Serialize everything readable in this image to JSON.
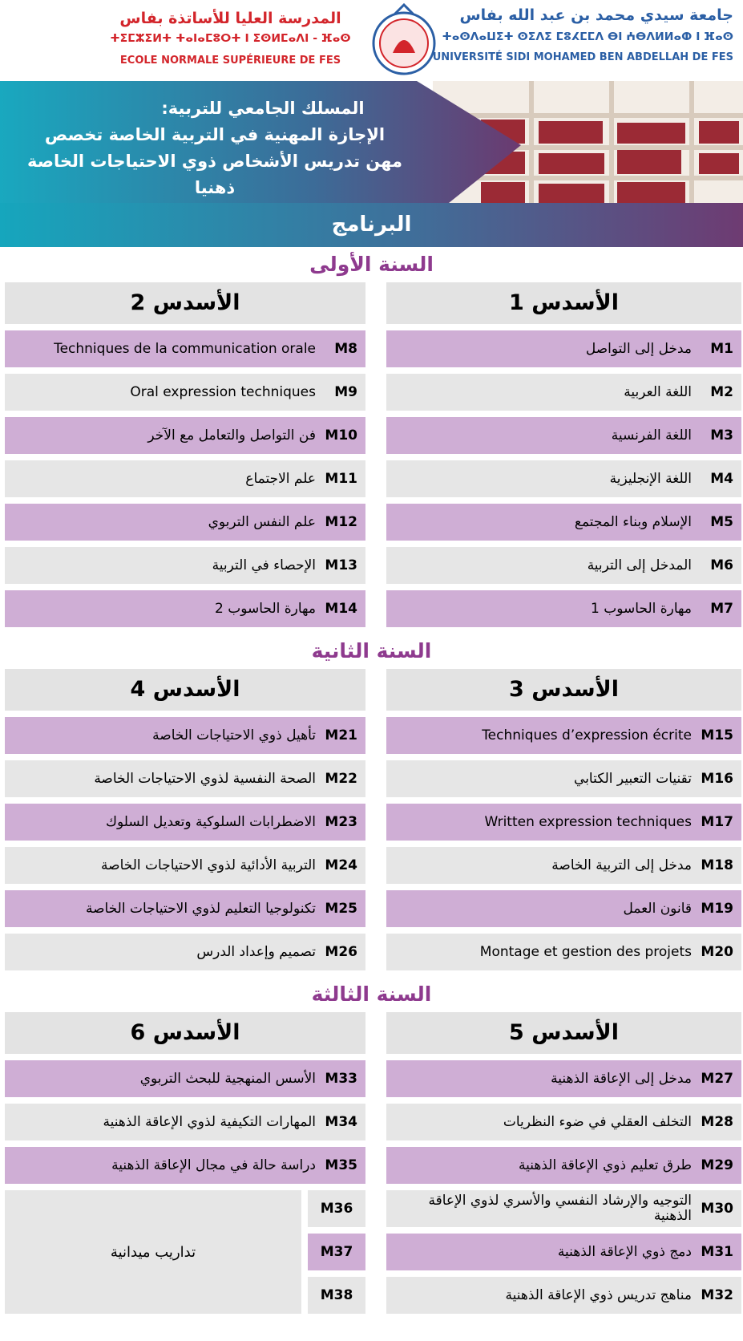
{
  "header": {
    "university_ar": "جامعة سيدي محمد بن عبد الله بفاس",
    "university_tifinagh": "ⵜⴰⵙⴷⴰⵡⵉⵜ ⵙⵉⴷⵉ ⵎⵓⵃⵎⵎⴷ ⴱⵏ ⵄⴱⴷⵍⵍⴰⵀ ⵏ ⴼⴰⵙ",
    "university_fr": "UNIVERSITÉ SIDI MOHAMED BEN ABDELLAH DE FES",
    "school_ar": "المدرسة العليا للأساتذة بفاس",
    "school_tifinagh": "ⵜⵉⵎⵣⵉⵍⵜ ⵜⴰⵏⴰⵎⵓⵔⵜ ⵏ ⵉⵙⵍⵎⴰⴷⵏ - ⴼⴰⵙ",
    "school_fr": "ECOLE NORMALE SUPÉRIEURE DE FES"
  },
  "banner": {
    "lines": [
      "المسلك الجامعي للتربية:",
      "الإجازة المهنية في التربية الخاصة  تخصص",
      "مهن تدريس الأشخاص ذوي الاحتياجات الخاصة ذهنيا"
    ]
  },
  "program_title": "البرنامج",
  "years": [
    {
      "title": "السنة الأولى",
      "semesters": [
        {
          "title": "الأسدس 1",
          "modules": [
            {
              "code": "M1",
              "name": "مدخل إلى التواصل"
            },
            {
              "code": "M2",
              "name": "اللغة العربية"
            },
            {
              "code": "M3",
              "name": "اللغة الفرنسية"
            },
            {
              "code": "M4",
              "name": "اللغة الإنجليزية"
            },
            {
              "code": "M5",
              "name": "الإسلام وبناء المجتمع"
            },
            {
              "code": "M6",
              "name": "المدخل إلى التربية"
            },
            {
              "code": "M7",
              "name": "مهارة الحاسوب 1"
            }
          ]
        },
        {
          "title": "الأسدس 2",
          "modules": [
            {
              "code": "M8",
              "name": "Techniques de la communication orale"
            },
            {
              "code": "M9",
              "name": "Oral expression techniques"
            },
            {
              "code": "M10",
              "name": "فن التواصل والتعامل مع الآخر"
            },
            {
              "code": "M11",
              "name": "علم الاجتماع"
            },
            {
              "code": "M12",
              "name": "علم النفس التربوي"
            },
            {
              "code": "M13",
              "name": "الإحصاء في التربية"
            },
            {
              "code": "M14",
              "name": "مهارة الحاسوب 2"
            }
          ]
        }
      ]
    },
    {
      "title": "السنة الثانية",
      "semesters": [
        {
          "title": "الأسدس 3",
          "modules": [
            {
              "code": "M15",
              "name": "Techniques d’expression écrite"
            },
            {
              "code": "M16",
              "name": "تقنيات التعبير الكتابي"
            },
            {
              "code": "M17",
              "name": "Written expression techniques"
            },
            {
              "code": "M18",
              "name": "مدخل إلى التربية الخاصة"
            },
            {
              "code": "M19",
              "name": "قانون العمل"
            },
            {
              "code": "M20",
              "name": "Montage et gestion des projets"
            }
          ]
        },
        {
          "title": "الأسدس 4",
          "modules": [
            {
              "code": "M21",
              "name": "تأهيل ذوي الاحتياجات الخاصة"
            },
            {
              "code": "M22",
              "name": "الصحة النفسية لذوي الاحتياجات الخاصة"
            },
            {
              "code": "M23",
              "name": "الاضطرابات السلوكية وتعديل السلوك"
            },
            {
              "code": "M24",
              "name": "التربية الأدائية لذوي الاحتياجات الخاصة"
            },
            {
              "code": "M25",
              "name": "تكنولوجيا التعليم لذوي الاحتياجات الخاصة"
            },
            {
              "code": "M26",
              "name": "تصميم وإعداد الدرس"
            }
          ]
        }
      ]
    },
    {
      "title": "السنة الثالثة",
      "semesters": [
        {
          "title": "الأسدس 5",
          "modules": [
            {
              "code": "M27",
              "name": "مدخل إلى الإعاقة الذهنية"
            },
            {
              "code": "M28",
              "name": "التخلف العقلي في ضوء النظريات"
            },
            {
              "code": "M29",
              "name": "طرق تعليم ذوي الإعاقة الذهنية"
            },
            {
              "code": "M30",
              "name": "التوجيه والإرشاد النفسي والأسري لذوي الإعاقة الذهنية"
            },
            {
              "code": "M31",
              "name": "دمج ذوي الإعاقة الذهنية"
            },
            {
              "code": "M32",
              "name": "مناهج تدريس ذوي الإعاقة الذهنية"
            }
          ]
        },
        {
          "title": "الأسدس 6",
          "modules": [
            {
              "code": "M33",
              "name": "الأسس المنهجية للبحث التربوي"
            },
            {
              "code": "M34",
              "name": "المهارات التكيفية لذوي الإعاقة الذهنية"
            },
            {
              "code": "M35",
              "name": "دراسة حالة في مجال الإعاقة الذهنية"
            }
          ],
          "internship": {
            "codes": [
              "M36",
              "M37",
              "M38"
            ],
            "name": "تداريب ميدانية"
          }
        }
      ]
    }
  ]
}
